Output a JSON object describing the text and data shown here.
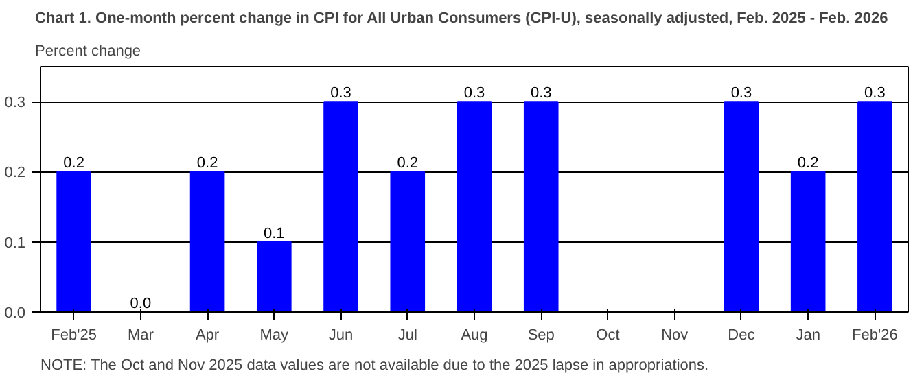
{
  "chart_data": {
    "type": "bar",
    "title": "Chart 1. One-month percent change in CPI for All Urban Consumers (CPI-U), seasonally adjusted, Feb. 2025 - Feb. 2026",
    "ylabel": "Percent change",
    "categories": [
      "Feb'25",
      "Mar",
      "Apr",
      "May",
      "Jun",
      "Jul",
      "Aug",
      "Sep",
      "Oct",
      "Nov",
      "Dec",
      "Jan",
      "Feb'26"
    ],
    "values": [
      0.2,
      0.0,
      0.2,
      0.1,
      0.3,
      0.2,
      0.3,
      0.3,
      null,
      null,
      0.3,
      0.2,
      0.3
    ],
    "value_labels": [
      "0.2",
      "0.0",
      "0.2",
      "0.1",
      "0.3",
      "0.2",
      "0.3",
      "0.3",
      null,
      null,
      "0.3",
      "0.2",
      "0.3"
    ],
    "color": "#0000ff",
    "ylim": [
      0,
      0.35
    ],
    "yticks": [
      {
        "value": 0,
        "label": "0.0"
      },
      0.1,
      0.2,
      0.3
    ],
    "grid": "y",
    "annotations": [
      "NOTE: The Oct and Nov 2025 data values are not available due to the 2025 lapse in appropriations."
    ]
  }
}
